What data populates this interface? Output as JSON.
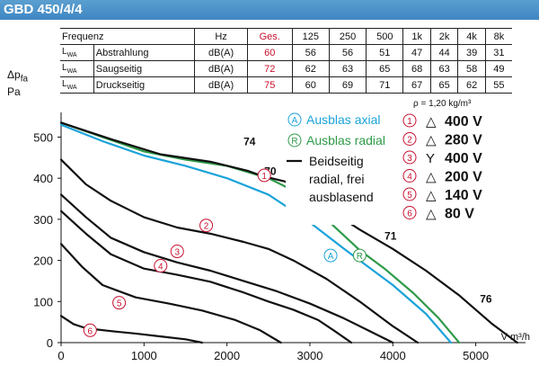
{
  "header": {
    "title": "GBD 450/4/4"
  },
  "table": {
    "col_header_label": "Frequenz",
    "columns": [
      "Hz",
      "Ges.",
      "125",
      "250",
      "500",
      "1k",
      "2k",
      "4k",
      "8k"
    ],
    "rows": [
      {
        "sym": "L",
        "sub": "WA",
        "label": "Abstrahlung",
        "unit": "dB(A)",
        "total": "60",
        "values": [
          "56",
          "56",
          "51",
          "47",
          "44",
          "39",
          "31"
        ]
      },
      {
        "sym": "L",
        "sub": "WA",
        "label": "Saugseitig",
        "unit": "dB(A)",
        "total": "72",
        "values": [
          "62",
          "63",
          "65",
          "68",
          "63",
          "58",
          "49"
        ]
      },
      {
        "sym": "L",
        "sub": "WA",
        "label": "Druckseitig",
        "unit": "dB(A)",
        "total": "75",
        "values": [
          "60",
          "69",
          "71",
          "67",
          "65",
          "62",
          "55"
        ]
      }
    ]
  },
  "density": "ρ = 1,20 kg/m³",
  "y_unit": {
    "line1": "Δpfa",
    "line2": "Pa"
  },
  "colors": {
    "header": "#4a90c8",
    "axial": "#1ba3d9",
    "radial": "#2e9a48",
    "black": "#111111",
    "red": "#c8102e"
  },
  "chart_data": {
    "type": "line",
    "xlabel": "V̇ m³/h",
    "ylabel": "Δpfa Pa",
    "xlim": [
      0,
      5600
    ],
    "ylim": [
      0,
      560
    ],
    "xticks": [
      0,
      1000,
      2000,
      3000,
      4000,
      5000
    ],
    "yticks": [
      0,
      100,
      200,
      300,
      400,
      500
    ],
    "grid": false,
    "series": [
      {
        "name": "Ausblas axial",
        "color": "#1ba3d9",
        "x": [
          0,
          500,
          1000,
          1500,
          2000,
          2500,
          2950,
          3400,
          3600,
          4000,
          4400,
          4700
        ],
        "y": [
          530,
          490,
          455,
          430,
          400,
          360,
          300,
          230,
          200,
          140,
          70,
          0
        ]
      },
      {
        "name": "Ausblas radial",
        "color": "#2e9a48",
        "x": [
          0,
          500,
          1000,
          1500,
          2000,
          2500,
          2800,
          3200,
          3600,
          3900,
          4250,
          4550,
          4800
        ],
        "y": [
          535,
          500,
          465,
          445,
          430,
          400,
          370,
          300,
          225,
          180,
          120,
          60,
          0
        ]
      },
      {
        "name": "1",
        "x": [
          0,
          600,
          1200,
          1800,
          2250,
          2430
        ],
        "y": [
          535,
          495,
          458,
          440,
          418,
          405
        ]
      },
      {
        "name": "1",
        "x": [
          2430,
          2700,
          3100,
          3600,
          4000,
          4400,
          4800,
          5200,
          5500
        ],
        "y": [
          405,
          392,
          340,
          275,
          228,
          175,
          115,
          45,
          0
        ]
      },
      {
        "name": "2",
        "x": [
          0,
          300,
          600,
          1000,
          1400,
          1800,
          2200,
          2500,
          2800,
          3200,
          3600,
          4000,
          4300
        ],
        "y": [
          445,
          385,
          345,
          305,
          280,
          265,
          245,
          228,
          200,
          155,
          100,
          40,
          0
        ]
      },
      {
        "name": "3",
        "x": [
          0,
          300,
          600,
          1000,
          1400,
          1800,
          2200,
          2600,
          3000,
          3400,
          3700,
          4000
        ],
        "y": [
          360,
          305,
          255,
          220,
          195,
          175,
          150,
          125,
          95,
          60,
          30,
          0
        ]
      },
      {
        "name": "4",
        "x": [
          0,
          300,
          600,
          1000,
          1400,
          1800,
          2200,
          2500,
          2800,
          3100,
          3300,
          3500
        ],
        "y": [
          320,
          265,
          215,
          180,
          165,
          148,
          122,
          100,
          80,
          55,
          28,
          0
        ]
      },
      {
        "name": "5",
        "x": [
          0,
          250,
          500,
          900,
          1300,
          1700,
          2100,
          2400,
          2650
        ],
        "y": [
          240,
          185,
          140,
          110,
          95,
          78,
          55,
          30,
          0
        ]
      },
      {
        "name": "6",
        "x": [
          0,
          150,
          300,
          600,
          900,
          1200,
          1500,
          1700
        ],
        "y": [
          65,
          45,
          35,
          28,
          22,
          15,
          8,
          0
        ]
      }
    ],
    "annotations": [
      {
        "text": "74",
        "x": 2200,
        "y": 480
      },
      {
        "text": "70",
        "x": 2450,
        "y": 408
      },
      {
        "text": "71",
        "x": 3900,
        "y": 250
      },
      {
        "text": "76",
        "x": 5050,
        "y": 97
      }
    ],
    "circle_labels": [
      {
        "text": "1",
        "x": 2450,
        "y": 407,
        "color": "#c8102e"
      },
      {
        "text": "2",
        "x": 1750,
        "y": 285,
        "color": "#c8102e"
      },
      {
        "text": "3",
        "x": 1400,
        "y": 222,
        "color": "#c8102e"
      },
      {
        "text": "4",
        "x": 1200,
        "y": 187,
        "color": "#c8102e"
      },
      {
        "text": "5",
        "x": 700,
        "y": 97,
        "color": "#c8102e"
      },
      {
        "text": "6",
        "x": 350,
        "y": 30,
        "color": "#c8102e"
      },
      {
        "text": "A",
        "x": 3250,
        "y": 212,
        "color": "#1ba3d9"
      },
      {
        "text": "R",
        "x": 3600,
        "y": 212,
        "color": "#2e9a48"
      }
    ],
    "legend": {
      "placement": "top-right",
      "entries": [
        {
          "mark": "A",
          "label": "Ausblas axial",
          "color": "#1ba3d9"
        },
        {
          "mark": "R",
          "label": "Ausblas radial",
          "color": "#2e9a48"
        },
        {
          "mark": "—",
          "label": "Beidseitig radial, frei ausblasend",
          "color": "#111111"
        }
      ],
      "voltages": [
        {
          "mark": "1",
          "symbol": "△",
          "value": "400 V"
        },
        {
          "mark": "2",
          "symbol": "△",
          "value": "280 V"
        },
        {
          "mark": "3",
          "symbol": "Y",
          "value": "400 V"
        },
        {
          "mark": "4",
          "symbol": "△",
          "value": "200 V"
        },
        {
          "mark": "5",
          "symbol": "△",
          "value": "140 V"
        },
        {
          "mark": "6",
          "symbol": "△",
          "value": "80 V"
        }
      ]
    }
  }
}
